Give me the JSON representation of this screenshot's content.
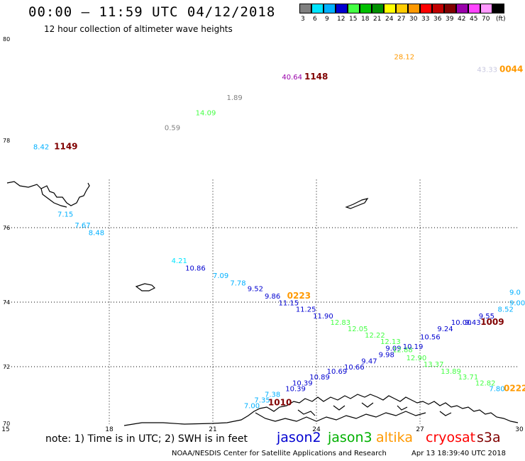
{
  "header": {
    "title": "00:00 – 11:59 UTC 04/12/2018",
    "subtitle": "12 hour collection of altimeter wave heights"
  },
  "legend": {
    "unit": "(ft)",
    "bins": [
      {
        "label": "3",
        "color": "#808080"
      },
      {
        "label": "6",
        "color": "#00e5ff"
      },
      {
        "label": "9",
        "color": "#00b0ff"
      },
      {
        "label": "12",
        "color": "#0000d0"
      },
      {
        "label": "15",
        "color": "#44ff44"
      },
      {
        "label": "18",
        "color": "#00c000"
      },
      {
        "label": "21",
        "color": "#009000"
      },
      {
        "label": "24",
        "color": "#ffff00"
      },
      {
        "label": "27",
        "color": "#ffcc00"
      },
      {
        "label": "30",
        "color": "#ff9900"
      },
      {
        "label": "33",
        "color": "#ff0000"
      },
      {
        "label": "36",
        "color": "#c00000"
      },
      {
        "label": "39",
        "color": "#800000"
      },
      {
        "label": "42",
        "color": "#9900aa"
      },
      {
        "label": "45",
        "color": "#ff44ff"
      },
      {
        "label": "70",
        "color": "#ff99ff"
      },
      {
        "label": "",
        "color": "#000000"
      }
    ]
  },
  "map": {
    "lon_labels": [
      "15",
      "18",
      "21",
      "24",
      "27",
      "30"
    ],
    "lat_labels": [
      "70",
      "72",
      "74",
      "76",
      "78",
      "80"
    ],
    "points": [
      {
        "lon": 15.8,
        "lat": 77.8,
        "value": "8.42",
        "color": "#00b0ff"
      },
      {
        "lon": 16.4,
        "lat": 77.8,
        "value": "1149",
        "color": "#800000",
        "time": true
      },
      {
        "lon": 16.5,
        "lat": 76.25,
        "value": "7.15",
        "color": "#00b0ff"
      },
      {
        "lon": 17.0,
        "lat": 76.0,
        "value": "7.67",
        "color": "#00b0ff"
      },
      {
        "lon": 17.4,
        "lat": 75.8,
        "value": "8.48",
        "color": "#00b0ff"
      },
      {
        "lon": 19.8,
        "lat": 75.05,
        "value": "4.21",
        "color": "#00e5ff"
      },
      {
        "lon": 20.2,
        "lat": 74.85,
        "value": "10.86",
        "color": "#0000d0"
      },
      {
        "lon": 21.0,
        "lat": 74.65,
        "value": "7.09",
        "color": "#00b0ff"
      },
      {
        "lon": 21.5,
        "lat": 74.45,
        "value": "7.78",
        "color": "#00b0ff"
      },
      {
        "lon": 22.0,
        "lat": 74.3,
        "value": "9.52",
        "color": "#0000d0"
      },
      {
        "lon": 22.5,
        "lat": 74.1,
        "value": "9.86",
        "color": "#0000d0"
      },
      {
        "lon": 23.15,
        "lat": 74.1,
        "value": "0223",
        "color": "#ff9900",
        "time": true
      },
      {
        "lon": 22.9,
        "lat": 73.9,
        "value": "11.15",
        "color": "#0000d0"
      },
      {
        "lon": 23.4,
        "lat": 73.7,
        "value": "11.25",
        "color": "#0000d0"
      },
      {
        "lon": 23.9,
        "lat": 73.5,
        "value": "11.90",
        "color": "#0000d0"
      },
      {
        "lon": 24.4,
        "lat": 73.3,
        "value": "12.83",
        "color": "#44ff44"
      },
      {
        "lon": 24.9,
        "lat": 73.1,
        "value": "12.05",
        "color": "#44ff44"
      },
      {
        "lon": 25.4,
        "lat": 72.9,
        "value": "12.22",
        "color": "#44ff44"
      },
      {
        "lon": 25.85,
        "lat": 72.7,
        "value": "12.13",
        "color": "#44ff44"
      },
      {
        "lon": 26.0,
        "lat": 72.5,
        "value": "9.09",
        "color": "#0000d0"
      },
      {
        "lon": 26.2,
        "lat": 72.45,
        "value": "12.88",
        "color": "#44ff44"
      },
      {
        "lon": 25.8,
        "lat": 72.3,
        "value": "9.98",
        "color": "#0000d0"
      },
      {
        "lon": 26.6,
        "lat": 72.2,
        "value": "12.90",
        "color": "#44ff44"
      },
      {
        "lon": 27.1,
        "lat": 72.0,
        "value": "13.37",
        "color": "#44ff44"
      },
      {
        "lon": 25.3,
        "lat": 72.1,
        "value": "9.47",
        "color": "#0000d0"
      },
      {
        "lon": 24.8,
        "lat": 71.9,
        "value": "10.66",
        "color": "#0000d0"
      },
      {
        "lon": 24.3,
        "lat": 71.75,
        "value": "10.69",
        "color": "#0000d0"
      },
      {
        "lon": 27.6,
        "lat": 71.75,
        "value": "13.89",
        "color": "#44ff44"
      },
      {
        "lon": 28.1,
        "lat": 71.55,
        "value": "13.71",
        "color": "#44ff44"
      },
      {
        "lon": 23.8,
        "lat": 71.55,
        "value": "10.89",
        "color": "#0000d0"
      },
      {
        "lon": 28.6,
        "lat": 71.35,
        "value": "12.82",
        "color": "#44ff44"
      },
      {
        "lon": 23.3,
        "lat": 71.35,
        "value": "10.39",
        "color": "#0000d0"
      },
      {
        "lon": 23.1,
        "lat": 71.15,
        "value": "10.39",
        "color": "#0000d0"
      },
      {
        "lon": 29.0,
        "lat": 71.15,
        "value": "7.80",
        "color": "#00b0ff"
      },
      {
        "lon": 29.6,
        "lat": 71.15,
        "value": "0222",
        "color": "#ff9900",
        "time": true
      },
      {
        "lon": 22.5,
        "lat": 70.95,
        "value": "7.38",
        "color": "#00b0ff"
      },
      {
        "lon": 22.2,
        "lat": 70.75,
        "value": "7.35",
        "color": "#00b0ff"
      },
      {
        "lon": 21.9,
        "lat": 70.55,
        "value": "7.00",
        "color": "#00b0ff"
      },
      {
        "lon": 22.6,
        "lat": 70.65,
        "value": "1010",
        "color": "#800000",
        "time": true
      },
      {
        "lon": 26.5,
        "lat": 72.55,
        "value": "10.19",
        "color": "#0000d0"
      },
      {
        "lon": 27.0,
        "lat": 72.85,
        "value": "10.56",
        "color": "#0000d0"
      },
      {
        "lon": 27.5,
        "lat": 73.1,
        "value": "9.24",
        "color": "#0000d0"
      },
      {
        "lon": 27.9,
        "lat": 73.3,
        "value": "10.00",
        "color": "#0000d0"
      },
      {
        "lon": 28.3,
        "lat": 73.3,
        "value": "9.43",
        "color": "#0000d0"
      },
      {
        "lon": 28.7,
        "lat": 73.5,
        "value": "9.55",
        "color": "#0000d0"
      },
      {
        "lon": 28.75,
        "lat": 73.3,
        "value": "1009",
        "color": "#800000",
        "time": true
      },
      {
        "lon": 29.25,
        "lat": 73.7,
        "value": "8.52",
        "color": "#00b0ff"
      },
      {
        "lon": 29.8,
        "lat": 73.9,
        "value": "9.00",
        "color": "#00b0ff"
      },
      {
        "lon": 30.4,
        "lat": 74.2,
        "value": "9.0",
        "color": "#00b0ff"
      },
      {
        "lon": 19.6,
        "lat": 78.2,
        "value": "0.59",
        "color": "#808080"
      },
      {
        "lon": 20.5,
        "lat": 78.5,
        "value": "14.09",
        "color": "#44ff44"
      },
      {
        "lon": 21.4,
        "lat": 78.8,
        "value": "1.89",
        "color": "#808080"
      },
      {
        "lon": 23.0,
        "lat": 79.2,
        "value": "40.64",
        "color": "#9900aa"
      },
      {
        "lon": 23.65,
        "lat": 79.2,
        "value": "1148",
        "color": "#800000",
        "time": true
      },
      {
        "lon": 26.25,
        "lat": 79.6,
        "value": "28.12",
        "color": "#ff9900"
      },
      {
        "lon": 28.65,
        "lat": 79.35,
        "value": "43.33",
        "color": "#c8c8e0"
      },
      {
        "lon": 29.3,
        "lat": 79.35,
        "value": "0044",
        "color": "#ff9900",
        "time": true
      }
    ]
  },
  "footer": {
    "note": "note: 1) Time is in UTC; 2) SWH is in feet",
    "satellites": [
      {
        "name": "jason2",
        "color": "#0000d0"
      },
      {
        "name": "jason3",
        "color": "#00b000"
      },
      {
        "name": "altika",
        "color": "#ff9900"
      },
      {
        "name": "cryosat",
        "color": "#ff0000"
      },
      {
        "name": "s3a",
        "color": "#800000"
      }
    ],
    "credit": "NOAA/NESDIS Center for Satellite Applications and Research",
    "timestamp": "Apr 13 18:39:40 UTC 2018"
  }
}
